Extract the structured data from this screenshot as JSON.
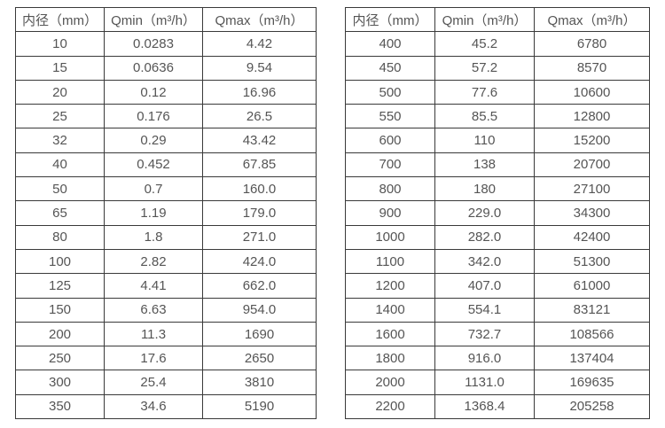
{
  "page": {
    "background_color": "#ffffff",
    "border_color": "#3a3a3a",
    "text_color": "#555555"
  },
  "chart_data": [
    {
      "type": "table",
      "title": "",
      "columns": [
        "内径（mm）",
        "Qmin（m³/h）",
        "Qmax（m³/h）"
      ],
      "rows": [
        [
          "10",
          "0.0283",
          "4.42"
        ],
        [
          "15",
          "0.0636",
          "9.54"
        ],
        [
          "20",
          "0.12",
          "16.96"
        ],
        [
          "25",
          "0.176",
          "26.5"
        ],
        [
          "32",
          "0.29",
          "43.42"
        ],
        [
          "40",
          "0.452",
          "67.85"
        ],
        [
          "50",
          "0.7",
          "160.0"
        ],
        [
          "65",
          "1.19",
          "179.0"
        ],
        [
          "80",
          "1.8",
          "271.0"
        ],
        [
          "100",
          "2.82",
          "424.0"
        ],
        [
          "125",
          "4.41",
          "662.0"
        ],
        [
          "150",
          "6.63",
          "954.0"
        ],
        [
          "200",
          "11.3",
          "1690"
        ],
        [
          "250",
          "17.6",
          "2650"
        ],
        [
          "300",
          "25.4",
          "3810"
        ],
        [
          "350",
          "34.6",
          "5190"
        ]
      ]
    },
    {
      "type": "table",
      "title": "",
      "columns": [
        "内径（mm）",
        "Qmin（m³/h）",
        "Qmax（m³/h）"
      ],
      "rows": [
        [
          "400",
          "45.2",
          "6780"
        ],
        [
          "450",
          "57.2",
          "8570"
        ],
        [
          "500",
          "77.6",
          "10600"
        ],
        [
          "550",
          "85.5",
          "12800"
        ],
        [
          "600",
          "110",
          "15200"
        ],
        [
          "700",
          "138",
          "20700"
        ],
        [
          "800",
          "180",
          "27100"
        ],
        [
          "900",
          "229.0",
          "34300"
        ],
        [
          "1000",
          "282.0",
          "42400"
        ],
        [
          "1100",
          "342.0",
          "51300"
        ],
        [
          "1200",
          "407.0",
          "61000"
        ],
        [
          "1400",
          "554.1",
          "83121"
        ],
        [
          "1600",
          "732.7",
          "108566"
        ],
        [
          "1800",
          "916.0",
          "137404"
        ],
        [
          "2000",
          "1131.0",
          "169635"
        ],
        [
          "2200",
          "1368.4",
          "205258"
        ]
      ]
    }
  ]
}
